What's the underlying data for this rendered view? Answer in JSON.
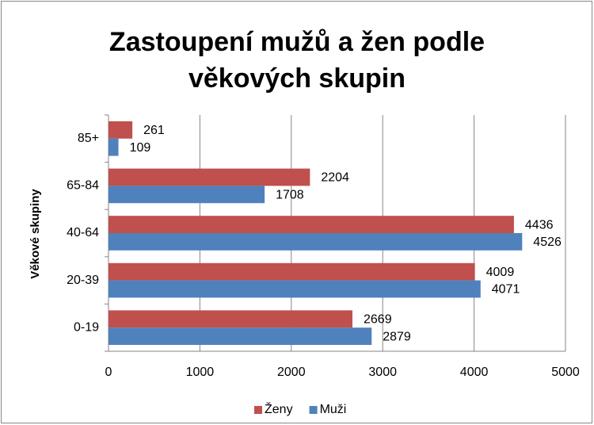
{
  "chart_data": {
    "type": "barh",
    "title": "Zastoupení mužů a žen podle věkových skupin",
    "y_label": "Věkové skupiny",
    "categories": [
      "0-19",
      "20-39",
      "40-64",
      "65-84",
      "85+"
    ],
    "series": [
      {
        "name": "Ženy",
        "color": "#c0504d",
        "values": [
          2669,
          4009,
          4436,
          2204,
          261
        ]
      },
      {
        "name": "Muži",
        "color": "#4f81bd",
        "values": [
          2879,
          4071,
          4526,
          1708,
          109
        ]
      }
    ],
    "xlim": [
      0,
      5000
    ],
    "xticks": [
      0,
      1000,
      2000,
      3000,
      4000,
      5000
    ],
    "grid": true,
    "legend": "bottom"
  }
}
